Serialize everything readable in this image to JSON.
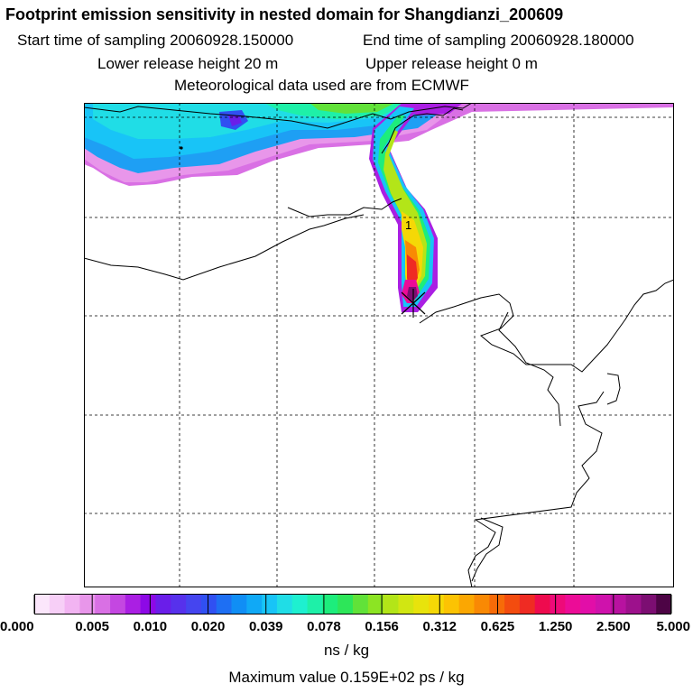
{
  "header": {
    "title": "Footprint emission sensitivity in nested domain for Shangdianzi_200609",
    "start_label": "Start time of sampling 20060928.150000",
    "end_label": "End time of sampling 20060928.180000",
    "lower_label": "Lower release height   20 m",
    "upper_label": "Upper release height    0 m",
    "met_label": "Meteorological data used are from ECMWF"
  },
  "map": {
    "grid": "dashed",
    "release_marker_label": "1",
    "receptor_marker": "x-cross-icon"
  },
  "legend": {
    "levels": [
      "0.000",
      "0.005",
      "0.010",
      "0.020",
      "0.039",
      "0.078",
      "0.156",
      "0.312",
      "0.625",
      "1.250",
      "2.500",
      "5.000"
    ],
    "colors": [
      "#fbe6fb",
      "#f7cff7",
      "#f2b4f2",
      "#e896ea",
      "#d970e4",
      "#c447e1",
      "#aa1fe3",
      "#8d09e6",
      "#6a1ee9",
      "#5731ec",
      "#4545ef",
      "#3050f2",
      "#1e6ff3",
      "#108ef5",
      "#10a9f6",
      "#18c4f7",
      "#20dde6",
      "#1ef0d0",
      "#1ef0a8",
      "#1ded7c",
      "#2de659",
      "#61e239",
      "#8ce423",
      "#b3e518",
      "#d1e612",
      "#e8e30c",
      "#f5d806",
      "#fcc303",
      "#fba702",
      "#f98904",
      "#f76b08",
      "#f34c0f",
      "#ef2b23",
      "#ee0b4e",
      "#ee0a79",
      "#ec0c97",
      "#e20ea8",
      "#cf12ac",
      "#b812a0",
      "#9d118c",
      "#7c0e72",
      "#4d0445"
    ],
    "units": "ns / kg",
    "max_value": "Maximum value  0.159E+02 ps / kg"
  }
}
